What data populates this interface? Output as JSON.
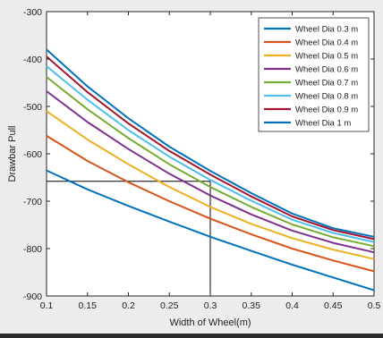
{
  "chart_data": {
    "type": "line",
    "xlabel": "Width of Wheel(m)",
    "ylabel": "Drawbar Pull",
    "xlim": [
      0.1,
      0.5
    ],
    "ylim": [
      -900,
      -300
    ],
    "x_ticks": [
      "0.1",
      "0.15",
      "0.2",
      "0.25",
      "0.3",
      "0.35",
      "0.4",
      "0.45",
      "0.5"
    ],
    "y_ticks": [
      "-300",
      "-400",
      "-500",
      "-600",
      "-700",
      "-800",
      "-900"
    ],
    "grid": false,
    "legend_position": "top-right",
    "x": [
      0.1,
      0.15,
      0.2,
      0.25,
      0.3,
      0.35,
      0.4,
      0.45,
      0.5
    ],
    "series": [
      {
        "name": "Wheel Dia 0.3 m",
        "color": "#0072bd",
        "values": [
          -635,
          -675,
          -710,
          -743,
          -775,
          -805,
          -834,
          -861,
          -888
        ]
      },
      {
        "name": "Wheel Dia 0.4 m",
        "color": "#d95319",
        "values": [
          -562,
          -615,
          -660,
          -700,
          -737,
          -770,
          -800,
          -825,
          -848
        ]
      },
      {
        "name": "Wheel Dia 0.5 m",
        "color": "#edb120",
        "values": [
          -510,
          -570,
          -622,
          -670,
          -712,
          -748,
          -778,
          -802,
          -822
        ]
      },
      {
        "name": "Wheel Dia 0.6 m",
        "color": "#7e2f8e",
        "values": [
          -468,
          -533,
          -590,
          -642,
          -688,
          -728,
          -762,
          -788,
          -808
        ]
      },
      {
        "name": "Wheel Dia 0.7 m",
        "color": "#77ac30",
        "values": [
          -438,
          -506,
          -567,
          -622,
          -670,
          -712,
          -749,
          -776,
          -795
        ]
      },
      {
        "name": "Wheel Dia 0.8 m",
        "color": "#4dbeee",
        "values": [
          -415,
          -486,
          -550,
          -606,
          -655,
          -699,
          -739,
          -767,
          -786
        ]
      },
      {
        "name": "Wheel Dia 0.9 m",
        "color": "#a2142f",
        "values": [
          -395,
          -470,
          -536,
          -594,
          -644,
          -690,
          -732,
          -761,
          -780
        ]
      },
      {
        "name": "Wheel Dia 1 m",
        "color": "#0072bd",
        "values": [
          -380,
          -458,
          -525,
          -585,
          -636,
          -683,
          -726,
          -757,
          -775
        ]
      }
    ],
    "annotation": {
      "x": 0.3,
      "y": -658,
      "color": "#000000"
    }
  }
}
